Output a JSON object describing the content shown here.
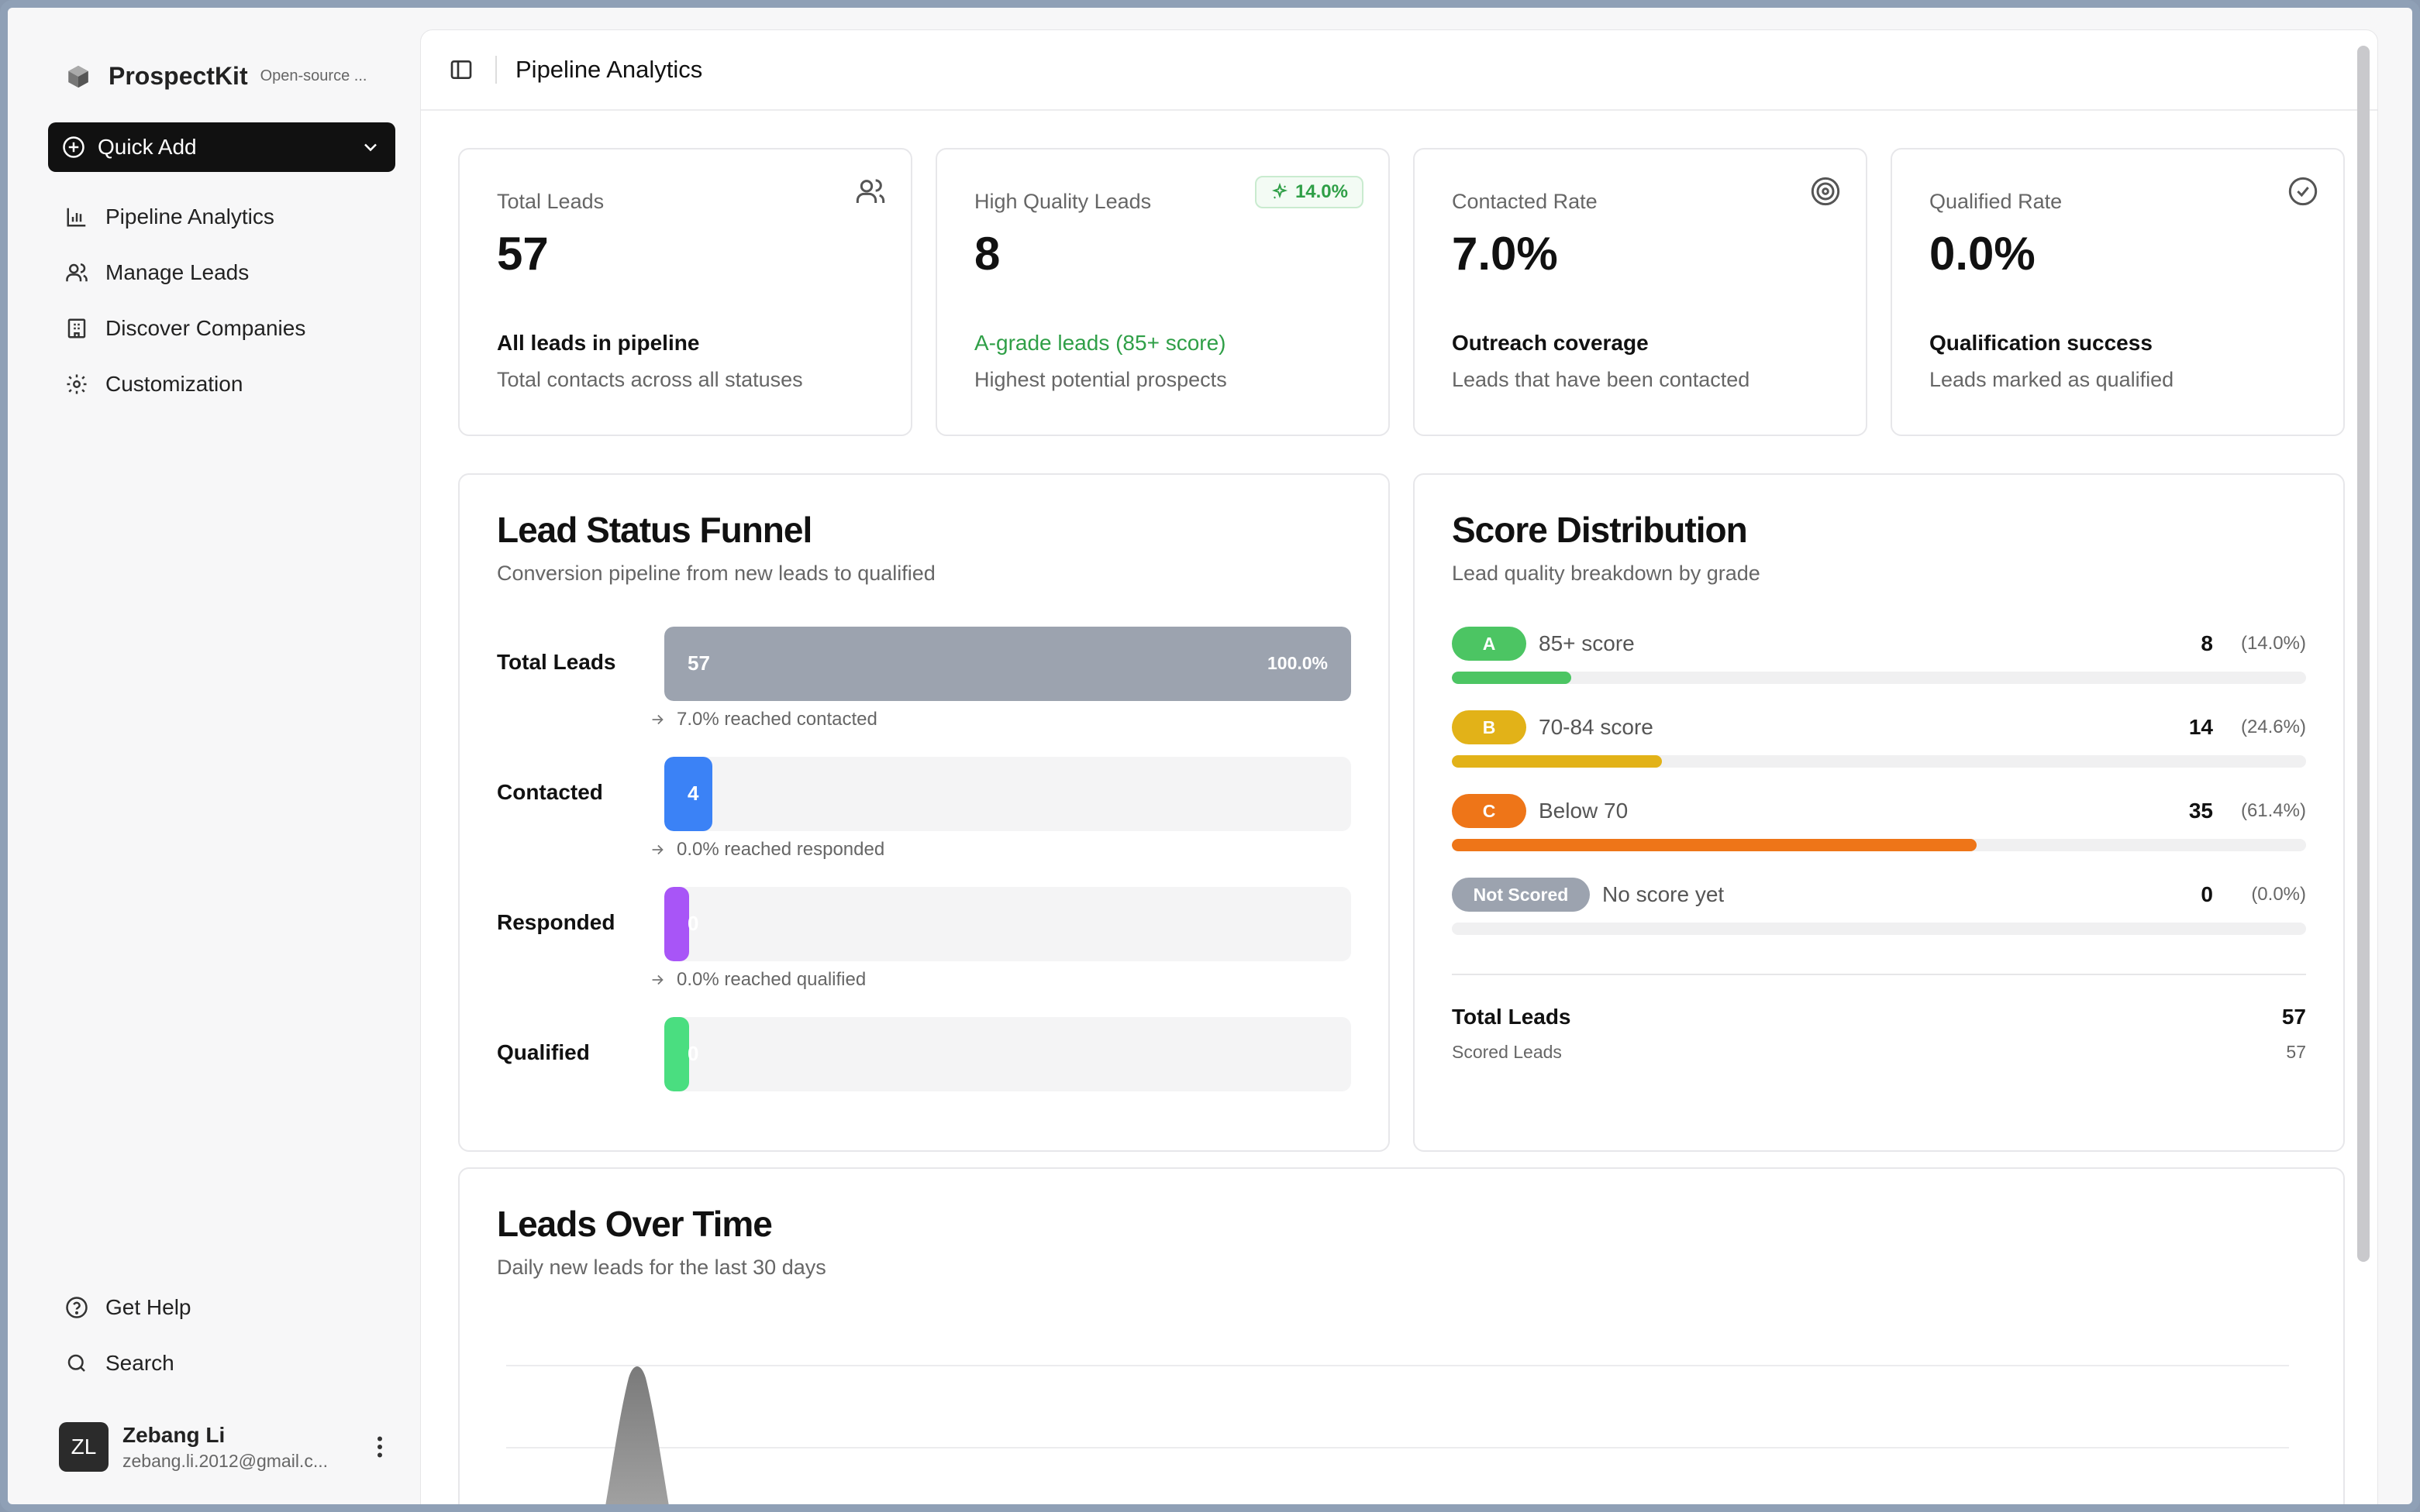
{
  "app": {
    "name": "ProspectKit",
    "tagline": "Open-source ..."
  },
  "sidebar": {
    "quick_add_label": "Quick Add",
    "items": [
      {
        "label": "Pipeline Analytics",
        "icon": "bar-chart-icon"
      },
      {
        "label": "Manage Leads",
        "icon": "users-icon"
      },
      {
        "label": "Discover Companies",
        "icon": "building-icon"
      },
      {
        "label": "Customization",
        "icon": "gear-icon"
      }
    ],
    "bottom_items": [
      {
        "label": "Get Help",
        "icon": "help-circle-icon"
      },
      {
        "label": "Search",
        "icon": "search-icon"
      }
    ],
    "user": {
      "initials": "ZL",
      "name": "Zebang Li",
      "email": "zebang.li.2012@gmail.c..."
    }
  },
  "header": {
    "title": "Pipeline Analytics"
  },
  "stats": [
    {
      "label": "Total Leads",
      "value": "57",
      "sub": "All leads in pipeline",
      "desc": "Total contacts across all statuses",
      "icon": "users-icon"
    },
    {
      "label": "High Quality Leads",
      "value": "8",
      "sub": "A-grade leads (85+ score)",
      "desc": "Highest potential prospects",
      "badge": "14.0%",
      "icon": "sparkle-icon"
    },
    {
      "label": "Contacted Rate",
      "value": "7.0%",
      "sub": "Outreach coverage",
      "desc": "Leads that have been contacted",
      "icon": "target-icon"
    },
    {
      "label": "Qualified Rate",
      "value": "0.0%",
      "sub": "Qualification success",
      "desc": "Leads marked as qualified",
      "icon": "check-circle-icon"
    }
  ],
  "funnel": {
    "title": "Lead Status Funnel",
    "subtitle": "Conversion pipeline from new leads to qualified",
    "stages": [
      {
        "label": "Total Leads",
        "count": "57",
        "pct": "100.0%",
        "fill": 1.0,
        "color": "#9ca3af",
        "note": "7.0% reached contacted"
      },
      {
        "label": "Contacted",
        "count": "4",
        "pct": "7.0%",
        "fill": 0.07,
        "color": "#3b82f6",
        "note": "0.0% reached responded"
      },
      {
        "label": "Responded",
        "count": "0",
        "pct": "0.0%",
        "fill": 0.0,
        "color": "#a855f7",
        "note": "0.0% reached qualified"
      },
      {
        "label": "Qualified",
        "count": "0",
        "pct": "0.0%",
        "fill": 0.0,
        "color": "#4ade80",
        "note": ""
      }
    ]
  },
  "score": {
    "title": "Score Distribution",
    "subtitle": "Lead quality breakdown by grade",
    "grades": [
      {
        "badge": "A",
        "desc": "85+ score",
        "count": "8",
        "pct": "(14.0%)",
        "fill": 0.14,
        "color": "#4cc563"
      },
      {
        "badge": "B",
        "desc": "70-84 score",
        "count": "14",
        "pct": "(24.6%)",
        "fill": 0.246,
        "color": "#e2b218"
      },
      {
        "badge": "C",
        "desc": "Below 70",
        "count": "35",
        "pct": "(61.4%)",
        "fill": 0.614,
        "color": "#ee7518"
      },
      {
        "badge": "Not Scored",
        "desc": "No score yet",
        "count": "0",
        "pct": "(0.0%)",
        "fill": 0.0,
        "color": "#9ca3af"
      }
    ],
    "total_label": "Total Leads",
    "total_value": "57",
    "scored_label": "Scored Leads",
    "scored_value": "57"
  },
  "timeline": {
    "title": "Leads Over Time",
    "subtitle": "Daily new leads for the last 30 days"
  }
}
